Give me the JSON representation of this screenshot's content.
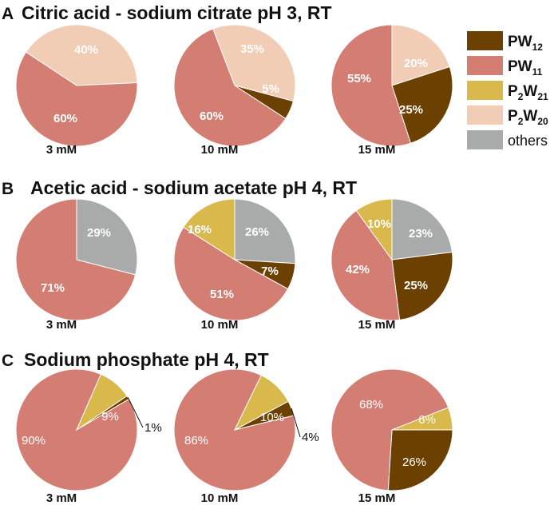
{
  "colors": {
    "PW12": "#6b4000",
    "PW11": "#d47d72",
    "P2W21": "#d9b94c",
    "P2W20": "#f2cdb6",
    "others": "#a9abab"
  },
  "legend": [
    {
      "key": "PW12",
      "main": "PW",
      "sub": "12"
    },
    {
      "key": "PW11",
      "main": "PW",
      "sub": "11"
    },
    {
      "key": "P2W21",
      "main": "P",
      "sub1": "2",
      "main2": "W",
      "sub": "21"
    },
    {
      "key": "P2W20",
      "main": "P",
      "sub1": "2",
      "main2": "W",
      "sub": "20"
    },
    {
      "key": "others",
      "main": "others"
    }
  ],
  "panels": [
    {
      "letter": "A",
      "title": "Citric acid - sodium citrate pH 3, RT"
    },
    {
      "letter": "B",
      "title": "Acetic acid - sodium acetate pH 4, RT"
    },
    {
      "letter": "C",
      "title": "Sodium phosphate pH 4, RT"
    }
  ],
  "chart_data": [
    {
      "type": "pie",
      "panel": "A",
      "category": "3 mM",
      "slices": [
        {
          "label": "PW11",
          "value": 60,
          "text": "60%"
        },
        {
          "label": "P2W20",
          "value": 40,
          "text": "40%"
        }
      ]
    },
    {
      "type": "pie",
      "panel": "A",
      "category": "10 mM",
      "slices": [
        {
          "label": "PW12",
          "value": 5,
          "text": "5%"
        },
        {
          "label": "PW11",
          "value": 60,
          "text": "60%"
        },
        {
          "label": "P2W20",
          "value": 35,
          "text": "35%"
        }
      ]
    },
    {
      "type": "pie",
      "panel": "A",
      "category": "15 mM",
      "slices": [
        {
          "label": "PW12",
          "value": 25,
          "text": "25%"
        },
        {
          "label": "PW11",
          "value": 55,
          "text": "55%"
        },
        {
          "label": "P2W20",
          "value": 20,
          "text": "20%"
        }
      ]
    },
    {
      "type": "pie",
      "panel": "B",
      "category": "3 mM",
      "slices": [
        {
          "label": "PW11",
          "value": 71,
          "text": "71%"
        },
        {
          "label": "others",
          "value": 29,
          "text": "29%"
        }
      ]
    },
    {
      "type": "pie",
      "panel": "B",
      "category": "10 mM",
      "slices": [
        {
          "label": "PW12",
          "value": 7,
          "text": "7%"
        },
        {
          "label": "PW11",
          "value": 51,
          "text": "51%"
        },
        {
          "label": "P2W21",
          "value": 16,
          "text": "16%"
        },
        {
          "label": "others",
          "value": 26,
          "text": "26%"
        }
      ]
    },
    {
      "type": "pie",
      "panel": "B",
      "category": "15 mM",
      "slices": [
        {
          "label": "PW12",
          "value": 25,
          "text": "25%"
        },
        {
          "label": "PW11",
          "value": 42,
          "text": "42%"
        },
        {
          "label": "P2W21",
          "value": 10,
          "text": "10%"
        },
        {
          "label": "others",
          "value": 23,
          "text": "23%"
        }
      ]
    },
    {
      "type": "pie",
      "panel": "C",
      "category": "3 mM",
      "slices": [
        {
          "label": "PW12",
          "value": 1,
          "text": "1%"
        },
        {
          "label": "PW11",
          "value": 90,
          "text": "90%"
        },
        {
          "label": "P2W21",
          "value": 9,
          "text": "9%"
        }
      ]
    },
    {
      "type": "pie",
      "panel": "C",
      "category": "10 mM",
      "slices": [
        {
          "label": "PW12",
          "value": 4,
          "text": "4%"
        },
        {
          "label": "PW11",
          "value": 86,
          "text": "86%"
        },
        {
          "label": "P2W21",
          "value": 10,
          "text": "10%"
        }
      ]
    },
    {
      "type": "pie",
      "panel": "C",
      "category": "15 mM",
      "slices": [
        {
          "label": "PW12",
          "value": 26,
          "text": "26%"
        },
        {
          "label": "PW11",
          "value": 68,
          "text": "68%"
        },
        {
          "label": "P2W21",
          "value": 6,
          "text": "6%"
        }
      ]
    }
  ]
}
